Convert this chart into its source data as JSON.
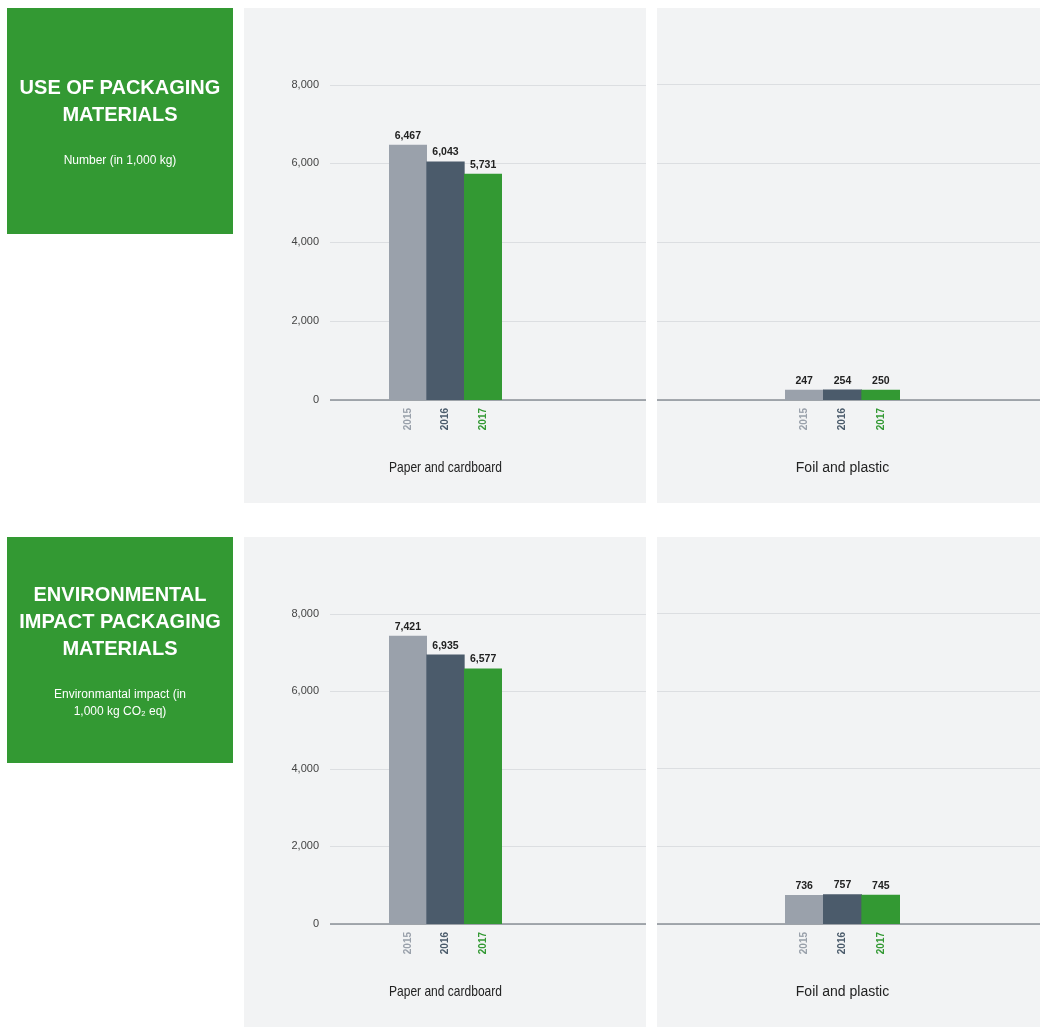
{
  "chart_data": [
    {
      "type": "other",
      "title": "USE OF PACKAGING MATERIALS",
      "subtitle": "Number (in 1,000 kg)"
    },
    {
      "type": "bar",
      "xlabel": "Paper and cardboard",
      "categories": [
        "2015",
        "2016",
        "2017"
      ],
      "values": [
        6467,
        6043,
        5731
      ],
      "value_labels": [
        "6,467",
        "6,043",
        "5,731"
      ],
      "colors": [
        "#9aa1ab",
        "#4b5b6b",
        "#339933"
      ],
      "ylim": [
        0,
        8000
      ],
      "yticks": [
        {
          "value": 0,
          "label": "0"
        },
        {
          "value": 2000,
          "label": "2,000"
        },
        {
          "value": 4000,
          "label": "4,000"
        },
        {
          "value": 6000,
          "label": "6,000"
        },
        {
          "value": 8000,
          "label": "8,000"
        }
      ],
      "grid": "y"
    },
    {
      "type": "bar",
      "xlabel": "Foil and plastic",
      "categories": [
        "2015",
        "2016",
        "2017"
      ],
      "values": [
        247,
        254,
        250
      ],
      "value_labels": [
        "247",
        "254",
        "250"
      ],
      "colors": [
        "#9aa1ab",
        "#4b5b6b",
        "#339933"
      ],
      "ylim": [
        0,
        8000
      ],
      "yticks": [
        0,
        2000,
        4000,
        6000,
        8000
      ],
      "grid": "y",
      "tick_labels": "x"
    },
    {
      "type": "other",
      "title": "ENVIRONMENTAL IMPACT PACKAGING MATERIALS",
      "subtitle": "Environmantal impact (in 1,000 kg CO₂ eq)"
    },
    {
      "type": "bar",
      "xlabel": "Paper and cardboard",
      "categories": [
        "2015",
        "2016",
        "2017"
      ],
      "values": [
        7421,
        6935,
        6577
      ],
      "value_labels": [
        "7,421",
        "6,935",
        "6,577"
      ],
      "colors": [
        "#9aa1ab",
        "#4b5b6b",
        "#339933"
      ],
      "ylim": [
        0,
        8000
      ],
      "yticks": [
        {
          "value": 0,
          "label": "0"
        },
        {
          "value": 2000,
          "label": "2,000"
        },
        {
          "value": 4000,
          "label": "4,000"
        },
        {
          "value": 6000,
          "label": "6,000"
        },
        {
          "value": 8000,
          "label": "8,000"
        }
      ],
      "grid": "y"
    },
    {
      "type": "bar",
      "xlabel": "Foil and plastic",
      "categories": [
        "2015",
        "2016",
        "2017"
      ],
      "values": [
        736,
        757,
        745
      ],
      "value_labels": [
        "736",
        "757",
        "745"
      ],
      "colors": [
        "#9aa1ab",
        "#4b5b6b",
        "#339933"
      ],
      "ylim": [
        0,
        8000
      ],
      "yticks": [
        0,
        2000,
        4000,
        6000,
        8000
      ],
      "grid": "y",
      "tick_labels": "x"
    }
  ]
}
